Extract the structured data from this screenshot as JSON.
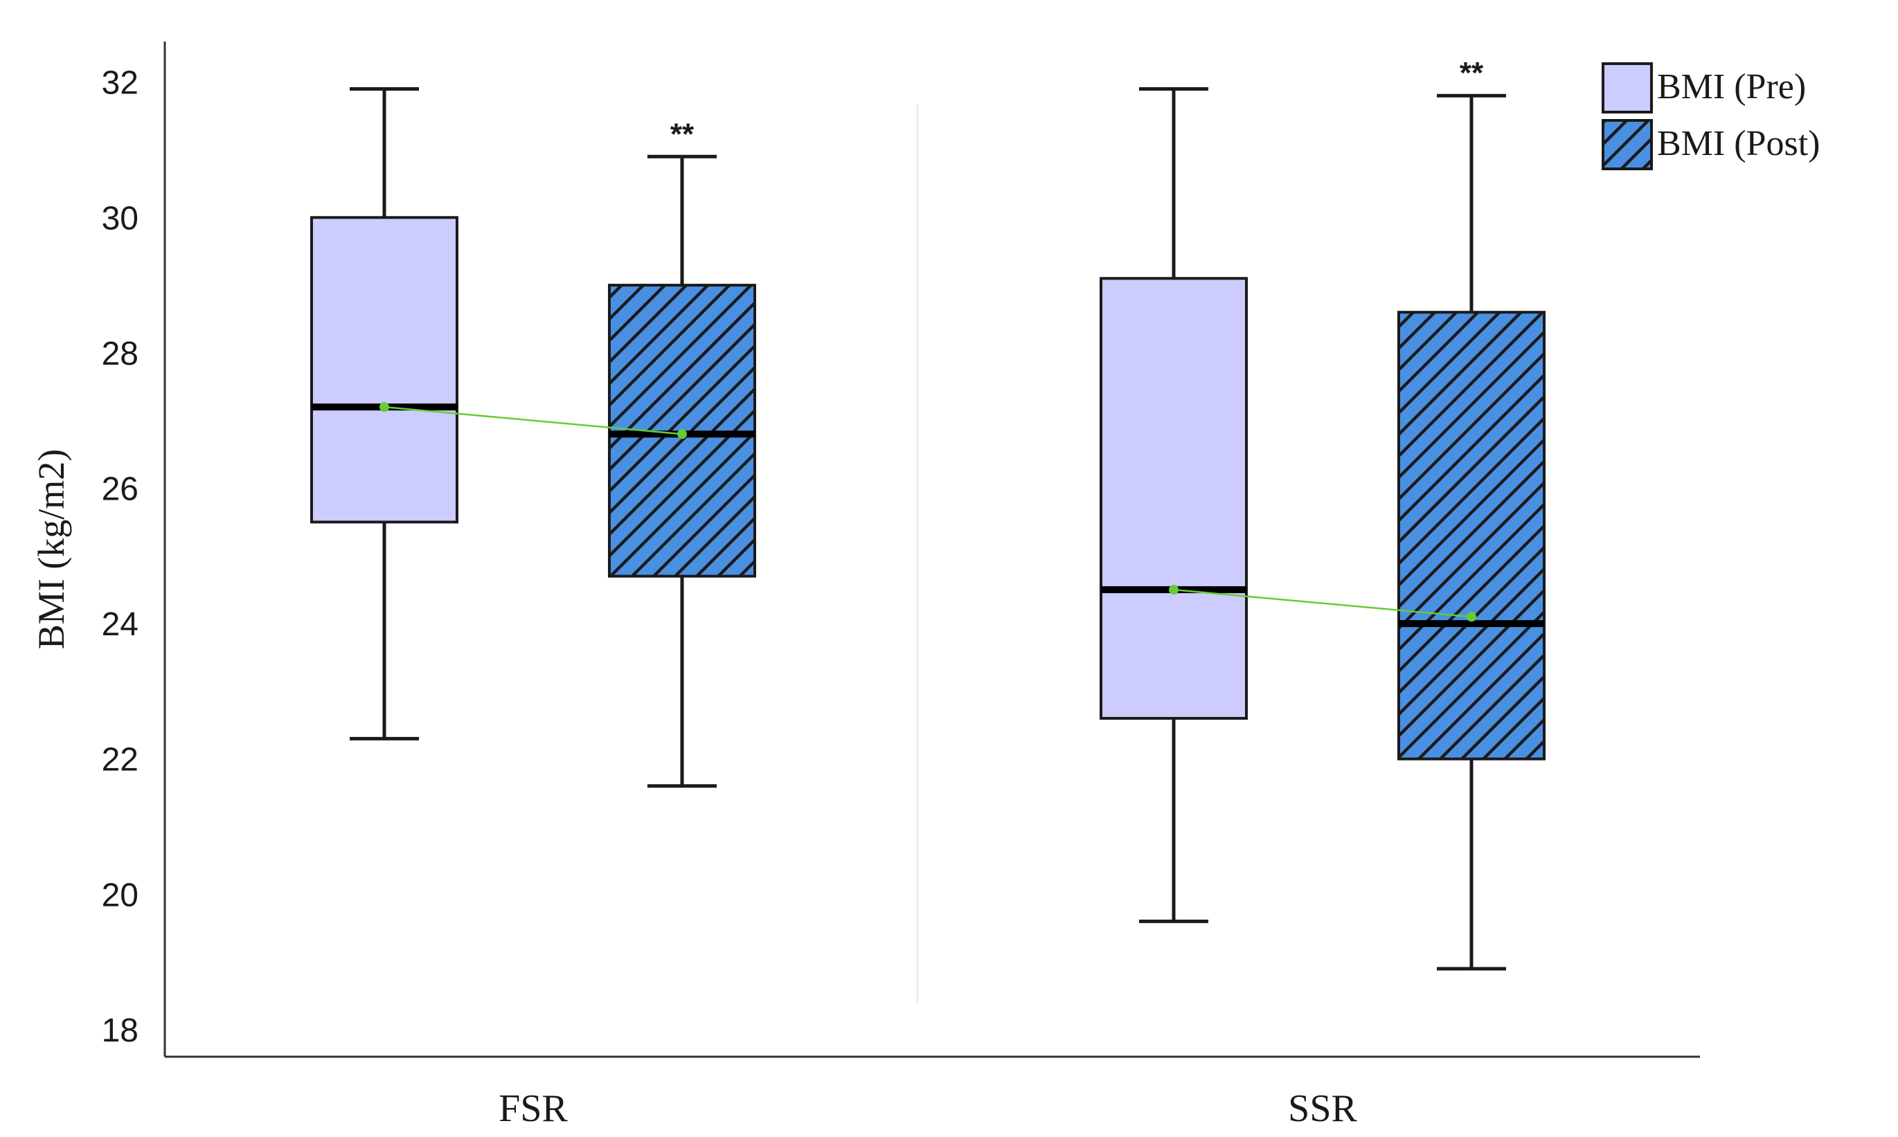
{
  "chart_data": {
    "type": "boxplot",
    "ylabel": "BMI (kg/m2)",
    "xlabel": "",
    "ylim": [
      17.6,
      32.6
    ],
    "yticks": [
      18,
      20,
      22,
      24,
      26,
      28,
      30,
      32
    ],
    "categories": [
      "FSR",
      "SSR"
    ],
    "legend_position": "top-right",
    "colors": {
      "pre_fill": "#ccccff",
      "post_fill": "#4a90e2",
      "post_hatch": "#1a1a1a",
      "mean_line": "#66cc33",
      "mean_marker": "#66cc33"
    },
    "series": [
      {
        "name": "BMI (Pre)",
        "pattern": "solid",
        "boxes": [
          {
            "category": "FSR",
            "whisker_low": 22.3,
            "q1": 25.5,
            "median": 27.2,
            "q3": 30.0,
            "whisker_high": 31.9,
            "mean": 27.2,
            "annotation": ""
          },
          {
            "category": "SSR",
            "whisker_low": 19.6,
            "q1": 22.6,
            "median": 24.5,
            "q3": 29.1,
            "whisker_high": 31.9,
            "mean": 24.5,
            "annotation": ""
          }
        ]
      },
      {
        "name": "BMI (Post)",
        "pattern": "hatched",
        "boxes": [
          {
            "category": "FSR",
            "whisker_low": 21.6,
            "q1": 24.7,
            "median": 26.8,
            "q3": 29.0,
            "whisker_high": 30.9,
            "mean": 26.8,
            "annotation": "**"
          },
          {
            "category": "SSR",
            "whisker_low": 18.9,
            "q1": 22.0,
            "median": 24.0,
            "q3": 28.6,
            "whisker_high": 31.8,
            "mean": 24.1,
            "annotation": "**"
          }
        ]
      }
    ]
  }
}
